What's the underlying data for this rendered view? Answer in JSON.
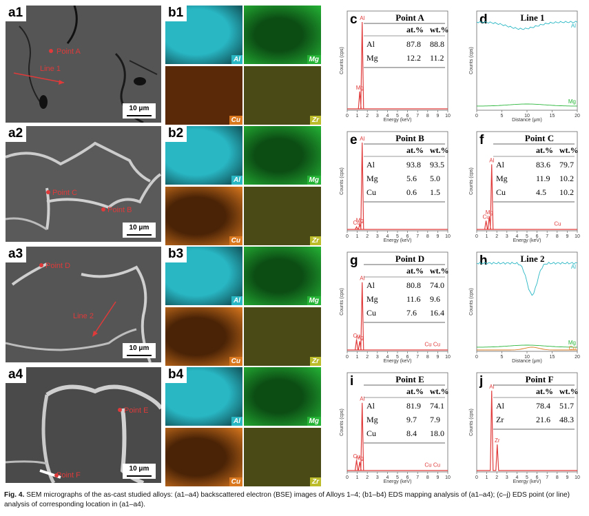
{
  "sem_panels": [
    {
      "label": "a1",
      "scale": "10 μm",
      "points": [
        "Point A"
      ],
      "line": "Line 1"
    },
    {
      "label": "a2",
      "scale": "10 μm",
      "points": [
        "Point C",
        "Point B"
      ]
    },
    {
      "label": "a3",
      "scale": "10 μm",
      "points": [
        "Point D"
      ],
      "line": "Line 2"
    },
    {
      "label": "a4",
      "scale": "10 μm",
      "points": [
        "Point E",
        "Point F"
      ]
    }
  ],
  "map_panels": [
    {
      "label": "b1",
      "tags": [
        "Al",
        "Mg",
        "Cu",
        "Zr"
      ]
    },
    {
      "label": "b2",
      "tags": [
        "Al",
        "Mg",
        "Cu",
        "Zr"
      ]
    },
    {
      "label": "b3",
      "tags": [
        "Al",
        "Mg",
        "Cu",
        "Zr"
      ]
    },
    {
      "label": "b4",
      "tags": [
        "Al",
        "Mg",
        "Cu",
        "Zr"
      ]
    }
  ],
  "colors": {
    "al": "#29b7c4",
    "mg": "#25b436",
    "cu": "#d9781e",
    "zr": "#bcbc2a",
    "red": "#e03a3a"
  },
  "chart_data": [
    {
      "panel": "c",
      "type": "spectrum",
      "title": "Point A",
      "xlabel": "Energy (keV)",
      "ylabel": "Counts (cps)",
      "xticks": [
        0,
        1,
        2,
        3,
        4,
        5,
        6,
        7,
        8,
        9,
        10
      ],
      "peaks": [
        {
          "el": "Al",
          "x": 1.49,
          "h": 1.0
        },
        {
          "el": "Mg",
          "x": 1.25,
          "h": 0.2
        }
      ],
      "table": {
        "headers": [
          "",
          "at.%",
          "wt.%"
        ],
        "rows": [
          [
            "Al",
            "87.8",
            "88.8"
          ],
          [
            "Mg",
            "12.2",
            "11.2"
          ]
        ]
      }
    },
    {
      "panel": "d",
      "type": "line",
      "title": "Line 1",
      "xlabel": "Distance (μm)",
      "ylabel": "Counts (cps)",
      "xticks": [
        0,
        5,
        10,
        15,
        20
      ],
      "series": [
        {
          "name": "Al",
          "color": "#29b7c4"
        },
        {
          "name": "Mg",
          "color": "#25b436"
        }
      ]
    },
    {
      "panel": "e",
      "type": "spectrum",
      "title": "Point B",
      "xlabel": "Energy (keV)",
      "ylabel": "Counts (cps)",
      "xticks": [
        0,
        1,
        2,
        3,
        4,
        5,
        6,
        7,
        8,
        9,
        10
      ],
      "peaks": [
        {
          "el": "Al",
          "x": 1.49,
          "h": 1.0
        },
        {
          "el": "Mg",
          "x": 1.25,
          "h": 0.06
        },
        {
          "el": "Cu",
          "x": 0.93,
          "h": 0.03
        }
      ],
      "table": {
        "headers": [
          "",
          "at.%",
          "wt.%"
        ],
        "rows": [
          [
            "Al",
            "93.8",
            "93.5"
          ],
          [
            "Mg",
            "5.6",
            "5.0"
          ],
          [
            "Cu",
            "0.6",
            "1.5"
          ]
        ]
      }
    },
    {
      "panel": "f",
      "type": "spectrum",
      "title": "Point C",
      "xlabel": "Energy (keV)",
      "ylabel": "Counts (cps)",
      "xticks": [
        0,
        1,
        2,
        3,
        4,
        5,
        6,
        7,
        8,
        9,
        10
      ],
      "peaks": [
        {
          "el": "Al",
          "x": 1.49,
          "h": 0.75
        },
        {
          "el": "Mg",
          "x": 1.25,
          "h": 0.15
        },
        {
          "el": "Cu",
          "x": 0.93,
          "h": 0.1
        },
        {
          "el": "Cu",
          "x": 8.05,
          "h": 0.0
        }
      ],
      "table": {
        "headers": [
          "",
          "at.%",
          "wt.%"
        ],
        "rows": [
          [
            "Al",
            "83.6",
            "79.7"
          ],
          [
            "Mg",
            "11.9",
            "10.2"
          ],
          [
            "Cu",
            "4.5",
            "10.2"
          ]
        ]
      }
    },
    {
      "panel": "g",
      "type": "spectrum",
      "title": "Point D",
      "xlabel": "Energy (keV)",
      "ylabel": "Counts (cps)",
      "xticks": [
        0,
        1,
        2,
        3,
        4,
        5,
        6,
        7,
        8,
        9,
        10
      ],
      "peaks": [
        {
          "el": "Al",
          "x": 1.49,
          "h": 0.78
        },
        {
          "el": "Mg",
          "x": 1.25,
          "h": 0.1
        },
        {
          "el": "Cu",
          "x": 0.93,
          "h": 0.12
        },
        {
          "el": "Cu",
          "x": 8.05,
          "h": 0.0
        },
        {
          "el": "Cu",
          "x": 8.9,
          "h": 0.0
        }
      ],
      "table": {
        "headers": [
          "",
          "at.%",
          "wt.%"
        ],
        "rows": [
          [
            "Al",
            "80.8",
            "74.0"
          ],
          [
            "Mg",
            "11.6",
            "9.6"
          ],
          [
            "Cu",
            "7.6",
            "16.4"
          ]
        ]
      }
    },
    {
      "panel": "h",
      "type": "line",
      "title": "Line 2",
      "xlabel": "Distance (μm)",
      "ylabel": "Counts (cps)",
      "xticks": [
        0,
        5,
        10,
        15,
        20
      ],
      "series": [
        {
          "name": "Al",
          "color": "#29b7c4"
        },
        {
          "name": "Mg",
          "color": "#25b436"
        },
        {
          "name": "Cu",
          "color": "#d9781e"
        }
      ]
    },
    {
      "panel": "i",
      "type": "spectrum",
      "title": "Point E",
      "xlabel": "Energy (keV)",
      "ylabel": "Counts (cps)",
      "xticks": [
        0,
        1,
        2,
        3,
        4,
        5,
        6,
        7,
        8,
        9,
        10
      ],
      "peaks": [
        {
          "el": "Al",
          "x": 1.49,
          "h": 0.78
        },
        {
          "el": "Mg",
          "x": 1.25,
          "h": 0.1
        },
        {
          "el": "Cu",
          "x": 0.93,
          "h": 0.12
        },
        {
          "el": "Cu",
          "x": 8.05,
          "h": 0.0
        },
        {
          "el": "Cu",
          "x": 8.9,
          "h": 0.0
        }
      ],
      "table": {
        "headers": [
          "",
          "at.%",
          "wt.%"
        ],
        "rows": [
          [
            "Al",
            "81.9",
            "74.1"
          ],
          [
            "Mg",
            "9.7",
            "7.9"
          ],
          [
            "Cu",
            "8.4",
            "18.0"
          ]
        ]
      }
    },
    {
      "panel": "j",
      "type": "spectrum",
      "title": "Point F",
      "xlabel": "Energy (keV)",
      "ylabel": "Counts (cps)",
      "xticks": [
        0,
        1,
        2,
        3,
        4,
        5,
        6,
        7,
        8,
        9,
        10
      ],
      "peaks": [
        {
          "el": "Al",
          "x": 1.49,
          "h": 0.92
        },
        {
          "el": "Zr",
          "x": 2.04,
          "h": 0.3
        }
      ],
      "table": {
        "headers": [
          "",
          "at.%",
          "wt.%"
        ],
        "rows": [
          [
            "Al",
            "78.4",
            "51.7"
          ],
          [
            "Zr",
            "21.6",
            "48.3"
          ]
        ]
      }
    }
  ],
  "caption": {
    "fig": "Fig. 4.",
    "text": "SEM micrographs of the as-cast studied alloys: (a1–a4) backscattered electron (BSE) images of Alloys 1–4; (b1–b4) EDS mapping analysis of (a1–a4); (c–j) EDS point (or line) analysis of corresponding location in (a1–a4)."
  }
}
